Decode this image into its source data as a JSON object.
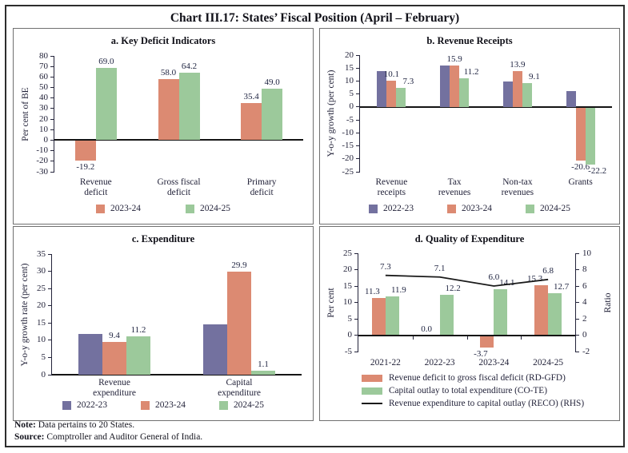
{
  "figure": {
    "title": "Chart III.17: States’ Fiscal Position (April – February)",
    "note": {
      "label": "Note:",
      "text": "Data pertains to 20 States."
    },
    "source": {
      "label": "Source:",
      "text": "Comptroller and Auditor General of India."
    }
  },
  "palette": {
    "purple": "#73719F",
    "salmon": "#DC8A72",
    "green": "#9CC99B",
    "line": "#1A1A1A"
  },
  "chart_data": [
    {
      "id": "a",
      "type": "bar",
      "title": "a. Key Deficit Indicators",
      "ylabel": "Per cent of BE",
      "ylim": [
        -30,
        80
      ],
      "yticks": [
        80,
        70,
        60,
        50,
        40,
        30,
        20,
        10,
        0,
        -10,
        -20,
        -30
      ],
      "categories": [
        [
          "Revenue",
          "deficit"
        ],
        [
          "Gross fiscal",
          "deficit"
        ],
        [
          "Primary",
          "deficit"
        ]
      ],
      "series": [
        {
          "name": "2023-24",
          "color": "#DC8A72",
          "values": [
            -19.2,
            58.0,
            35.4
          ],
          "show_labels": true
        },
        {
          "name": "2024-25",
          "color": "#9CC99B",
          "values": [
            69.0,
            64.2,
            49.0
          ],
          "show_labels": true
        }
      ],
      "legend": [
        {
          "type": "bar",
          "color": "#DC8A72",
          "label": "2023-24"
        },
        {
          "type": "bar",
          "color": "#9CC99B",
          "label": "2024-25"
        }
      ]
    },
    {
      "id": "b",
      "type": "bar",
      "title": "b. Revenue Receipts",
      "ylabel": "Y-o-y growth (per cent)",
      "ylim": [
        -25,
        20
      ],
      "yticks": [
        20,
        15,
        10,
        5,
        0,
        -5,
        -10,
        -15,
        -20,
        -25
      ],
      "categories": [
        [
          "Revenue",
          "receipts"
        ],
        [
          "Tax",
          "revenues"
        ],
        [
          "Non-tax",
          "revenues"
        ],
        [
          "Grants"
        ]
      ],
      "series": [
        {
          "name": "2022-23",
          "color": "#73719F",
          "values": [
            13.9,
            16.1,
            9.9,
            6.1
          ],
          "show_labels": false
        },
        {
          "name": "2023-24",
          "color": "#DC8A72",
          "values": [
            10.1,
            15.9,
            13.9,
            -20.6
          ],
          "show_labels": true
        },
        {
          "name": "2024-25",
          "color": "#9CC99B",
          "values": [
            7.3,
            11.2,
            9.1,
            -22.2
          ],
          "show_labels": true
        }
      ],
      "legend": [
        {
          "type": "bar",
          "color": "#73719F",
          "label": "2022-23"
        },
        {
          "type": "bar",
          "color": "#DC8A72",
          "label": "2023-24"
        },
        {
          "type": "bar",
          "color": "#9CC99B",
          "label": "2024-25"
        }
      ]
    },
    {
      "id": "c",
      "type": "bar",
      "title": "c. Expenditure",
      "ylabel": "Y-o-y growth rate (per cent)",
      "ylim": [
        0,
        35
      ],
      "yticks": [
        35,
        30,
        25,
        20,
        15,
        10,
        5,
        0
      ],
      "categories": [
        [
          "Revenue",
          "expenditure"
        ],
        [
          "Capital",
          "expenditure"
        ]
      ],
      "series": [
        {
          "name": "2022-23",
          "color": "#73719F",
          "values": [
            11.9,
            14.5
          ],
          "show_labels": false
        },
        {
          "name": "2023-24",
          "color": "#DC8A72",
          "values": [
            9.4,
            29.9
          ],
          "show_labels": true
        },
        {
          "name": "2024-25",
          "color": "#9CC99B",
          "values": [
            11.2,
            1.1
          ],
          "show_labels": true
        }
      ],
      "legend": [
        {
          "type": "bar",
          "color": "#73719F",
          "label": "2022-23"
        },
        {
          "type": "bar",
          "color": "#DC8A72",
          "label": "2023-24"
        },
        {
          "type": "bar",
          "color": "#9CC99B",
          "label": "2024-25"
        }
      ]
    },
    {
      "id": "d",
      "type": "bar+line",
      "title": "d. Quality of Expenditure",
      "ylabel": "Per cent",
      "ylim": [
        -5,
        25
      ],
      "yticks": [
        25,
        20,
        15,
        10,
        5,
        0,
        -5
      ],
      "right_axis": {
        "label": "Ratio",
        "ylim": [
          -2,
          10
        ],
        "yticks": [
          10,
          8,
          6,
          4,
          2,
          0,
          -2
        ]
      },
      "categories": [
        [
          "2021-22"
        ],
        [
          "2022-23"
        ],
        [
          "2023-24"
        ],
        [
          "2024-25"
        ]
      ],
      "series": [
        {
          "name": "Revenue deficit to gross fiscal deficit (RD-GFD)",
          "color": "#DC8A72",
          "values": [
            11.3,
            0.0,
            -3.7,
            15.3
          ],
          "show_labels": true
        },
        {
          "name": "Capital outlay to total expenditure (CO-TE)",
          "color": "#9CC99B",
          "values": [
            11.9,
            12.2,
            14.1,
            12.7
          ],
          "show_labels": true
        }
      ],
      "line_series": {
        "name": "Revenue expenditure to capital outlay (RECO) (RHS)",
        "color": "#1A1A1A",
        "axis": "right",
        "values": [
          7.3,
          7.1,
          6.0,
          6.8
        ],
        "show_labels": true
      },
      "legend": [
        {
          "type": "bar",
          "color": "#DC8A72",
          "label": "Revenue deficit to gross fiscal deficit (RD-GFD)"
        },
        {
          "type": "bar",
          "color": "#9CC99B",
          "label": "Capital outlay to total expenditure (CO-TE)"
        },
        {
          "type": "line",
          "color": "#1A1A1A",
          "label": "Revenue expenditure to capital outlay (RECO) (RHS)"
        }
      ]
    }
  ]
}
